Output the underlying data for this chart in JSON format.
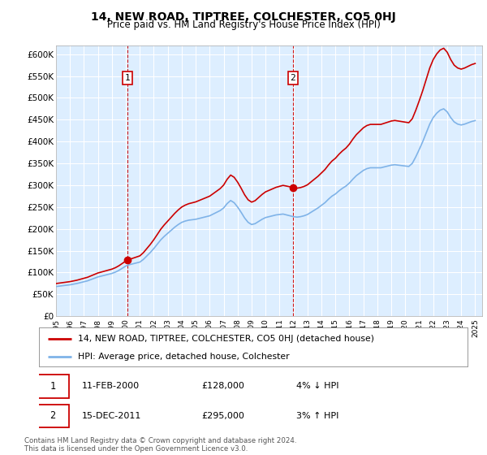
{
  "title": "14, NEW ROAD, TIPTREE, COLCHESTER, CO5 0HJ",
  "subtitle": "Price paid vs. HM Land Registry's House Price Index (HPI)",
  "ylabel_ticks": [
    "£0",
    "£50K",
    "£100K",
    "£150K",
    "£200K",
    "£250K",
    "£300K",
    "£350K",
    "£400K",
    "£450K",
    "£500K",
    "£550K",
    "£600K"
  ],
  "ytick_vals": [
    0,
    50000,
    100000,
    150000,
    200000,
    250000,
    300000,
    350000,
    400000,
    450000,
    500000,
    550000,
    600000
  ],
  "ylim": [
    0,
    620000
  ],
  "xlim_start": 1995.0,
  "xlim_end": 2025.5,
  "sale1_x": 2000.11,
  "sale1_y": 128000,
  "sale1_label": "1",
  "sale2_x": 2011.96,
  "sale2_y": 295000,
  "sale2_label": "2",
  "legend_line1": "14, NEW ROAD, TIPTREE, COLCHESTER, CO5 0HJ (detached house)",
  "legend_line2": "HPI: Average price, detached house, Colchester",
  "footnote": "Contains HM Land Registry data © Crown copyright and database right 2024.\nThis data is licensed under the Open Government Licence v3.0.",
  "hpi_color": "#7fb3e8",
  "price_color": "#cc0000",
  "vline_color": "#cc0000",
  "plot_bg": "#ddeeff",
  "grid_color": "#ffffff",
  "hpi_data_years": [
    1995.0,
    1995.25,
    1995.5,
    1995.75,
    1996.0,
    1996.25,
    1996.5,
    1996.75,
    1997.0,
    1997.25,
    1997.5,
    1997.75,
    1998.0,
    1998.25,
    1998.5,
    1998.75,
    1999.0,
    1999.25,
    1999.5,
    1999.75,
    2000.0,
    2000.25,
    2000.5,
    2000.75,
    2001.0,
    2001.25,
    2001.5,
    2001.75,
    2002.0,
    2002.25,
    2002.5,
    2002.75,
    2003.0,
    2003.25,
    2003.5,
    2003.75,
    2004.0,
    2004.25,
    2004.5,
    2004.75,
    2005.0,
    2005.25,
    2005.5,
    2005.75,
    2006.0,
    2006.25,
    2006.5,
    2006.75,
    2007.0,
    2007.25,
    2007.5,
    2007.75,
    2008.0,
    2008.25,
    2008.5,
    2008.75,
    2009.0,
    2009.25,
    2009.5,
    2009.75,
    2010.0,
    2010.25,
    2010.5,
    2010.75,
    2011.0,
    2011.25,
    2011.5,
    2011.75,
    2012.0,
    2012.25,
    2012.5,
    2012.75,
    2013.0,
    2013.25,
    2013.5,
    2013.75,
    2014.0,
    2014.25,
    2014.5,
    2014.75,
    2015.0,
    2015.25,
    2015.5,
    2015.75,
    2016.0,
    2016.25,
    2016.5,
    2016.75,
    2017.0,
    2017.25,
    2017.5,
    2017.75,
    2018.0,
    2018.25,
    2018.5,
    2018.75,
    2019.0,
    2019.25,
    2019.5,
    2019.75,
    2020.0,
    2020.25,
    2020.5,
    2020.75,
    2021.0,
    2021.25,
    2021.5,
    2021.75,
    2022.0,
    2022.25,
    2022.5,
    2022.75,
    2023.0,
    2023.25,
    2023.5,
    2023.75,
    2024.0,
    2024.25,
    2024.5,
    2024.75,
    2025.0
  ],
  "hpi_data_values": [
    68000,
    69000,
    70000,
    71000,
    72000,
    73500,
    75000,
    77000,
    79000,
    81000,
    84000,
    87000,
    90000,
    92000,
    94000,
    96000,
    98000,
    101000,
    105000,
    110000,
    115000,
    118000,
    120000,
    122000,
    124000,
    130000,
    138000,
    146000,
    155000,
    165000,
    175000,
    183000,
    190000,
    197000,
    204000,
    210000,
    215000,
    218000,
    220000,
    221000,
    222000,
    224000,
    226000,
    228000,
    230000,
    234000,
    238000,
    242000,
    248000,
    258000,
    265000,
    260000,
    250000,
    238000,
    225000,
    215000,
    210000,
    212000,
    217000,
    222000,
    226000,
    228000,
    230000,
    232000,
    233000,
    234000,
    232000,
    230000,
    228000,
    227000,
    228000,
    230000,
    233000,
    238000,
    243000,
    248000,
    254000,
    260000,
    268000,
    275000,
    280000,
    287000,
    293000,
    298000,
    305000,
    314000,
    322000,
    328000,
    334000,
    338000,
    340000,
    340000,
    340000,
    340000,
    342000,
    344000,
    346000,
    347000,
    346000,
    345000,
    344000,
    343000,
    350000,
    365000,
    382000,
    400000,
    420000,
    440000,
    455000,
    465000,
    472000,
    475000,
    468000,
    455000,
    445000,
    440000,
    438000,
    440000,
    443000,
    446000,
    448000
  ]
}
